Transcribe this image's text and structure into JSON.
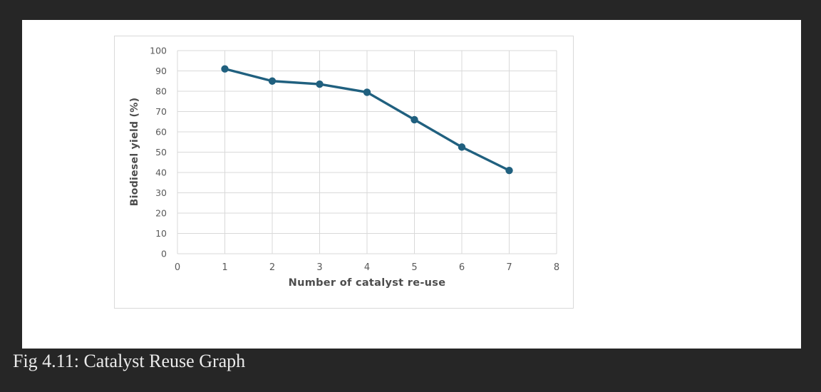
{
  "background_color": "#262626",
  "panel_color": "#ffffff",
  "caption": "Fig 4.11: Catalyst Reuse Graph",
  "chart_data": {
    "type": "line",
    "title": "",
    "series_name": "Biodiesel yield",
    "x": [
      1,
      2,
      3,
      4,
      5,
      6,
      7
    ],
    "values": [
      91,
      85,
      83.5,
      79.5,
      66,
      52.5,
      41
    ],
    "xlabel": "Number of catalyst re-use",
    "ylabel": "Biodiesel yield (%)",
    "xlim": [
      0,
      8
    ],
    "ylim": [
      0,
      100
    ],
    "x_ticks": [
      0,
      1,
      2,
      3,
      4,
      5,
      6,
      7,
      8
    ],
    "y_ticks": [
      0,
      10,
      20,
      30,
      40,
      50,
      60,
      70,
      80,
      90,
      100
    ],
    "grid": true,
    "legend": false,
    "line_color": "#20607f",
    "marker_color": "#20607f",
    "gridline_color": "#d9d9d9",
    "tick_label_color": "#595959",
    "frame_color": "#d9d9d9"
  }
}
